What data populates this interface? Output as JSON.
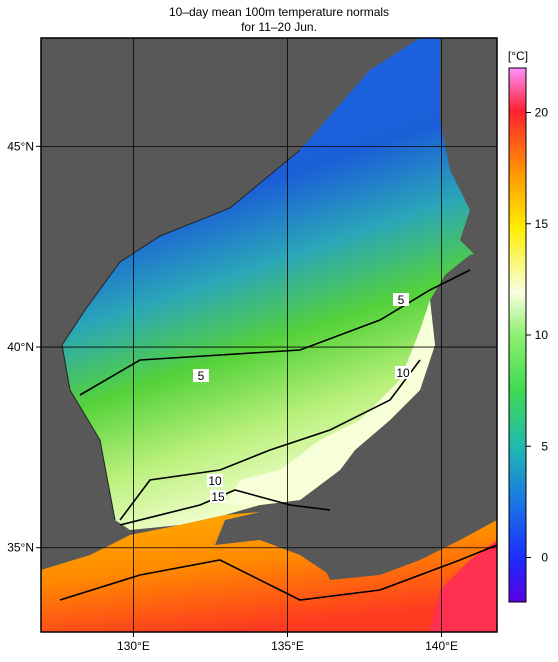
{
  "title": [
    "10–day mean 100m temperature normals",
    "for 11–20 Jun."
  ],
  "map": {
    "xlim": [
      127,
      141.8
    ],
    "ylim": [
      32.9,
      47.7
    ],
    "xticks": [
      {
        "value": 130,
        "label": "130°E"
      },
      {
        "value": 135,
        "label": "135°E"
      },
      {
        "value": 140,
        "label": "140°E"
      }
    ],
    "yticks": [
      {
        "value": 35,
        "label": "35°N"
      },
      {
        "value": 40,
        "label": "40°N"
      },
      {
        "value": 45,
        "label": "45°N"
      }
    ],
    "grid": true
  },
  "colorbar": {
    "unit": "[°C]",
    "lim": [
      -2,
      22
    ],
    "ticks": [
      0,
      5,
      10,
      15,
      20
    ]
  },
  "contour_labels": [
    5,
    5,
    10,
    10,
    15
  ]
}
